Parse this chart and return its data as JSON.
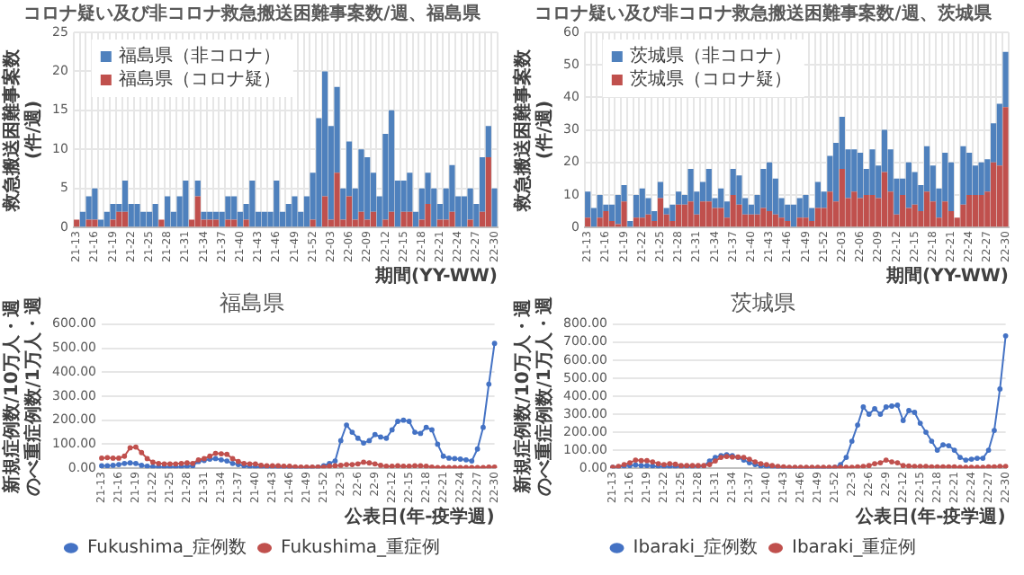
{
  "chart_data": [
    {
      "type": "bar",
      "title": "コロナ疑い及び非コロナ救急搬送困難事案数/週、福島県",
      "xlabel": "期間(YY-WW)",
      "ylabel": "救急搬送困難事案数(件/週)",
      "stacked": true,
      "grid": true,
      "legend": "top left",
      "ylim": [
        0,
        25
      ],
      "yticks": [
        0,
        5,
        10,
        15,
        20,
        25
      ],
      "categories": [
        "21-13",
        null,
        null,
        "21-16",
        null,
        null,
        "21-19",
        null,
        null,
        "21-22",
        null,
        null,
        "21-25",
        null,
        null,
        "21-28",
        null,
        null,
        "21-31",
        null,
        null,
        "21-34",
        null,
        null,
        "21-37",
        null,
        null,
        "21-40",
        null,
        null,
        "21-43",
        null,
        null,
        "21-46",
        null,
        null,
        "21-49",
        null,
        null,
        "21-52",
        null,
        null,
        "22-03",
        null,
        null,
        "22-06",
        null,
        null,
        "22-09",
        null,
        null,
        "22-12",
        null,
        null,
        "22-15",
        null,
        null,
        "22-18",
        null,
        null,
        "22-21",
        null,
        null,
        "22-24",
        null,
        null,
        "22-27",
        null,
        null,
        "22-30"
      ],
      "series": [
        {
          "name": "福島県（コロナ疑）",
          "color": "#c0504d",
          "values": [
            1,
            0,
            1,
            1,
            0,
            0,
            1,
            2,
            2,
            0,
            0,
            0,
            0,
            0,
            1,
            0,
            0,
            0,
            0,
            1,
            4,
            1,
            1,
            1,
            0,
            1,
            1,
            0,
            1,
            0,
            0,
            0,
            0,
            0,
            0,
            0,
            0,
            0,
            0,
            1,
            0,
            4,
            1,
            7,
            1,
            4,
            1,
            2,
            1,
            2,
            0,
            1,
            2,
            0,
            2,
            2,
            0,
            1,
            3,
            0,
            1,
            1,
            2,
            0,
            0,
            1,
            0,
            2,
            9,
            0
          ]
        },
        {
          "name": "福島県（非コロナ）",
          "color": "#4f81bd",
          "values": [
            0,
            2,
            3,
            4,
            1,
            2,
            2,
            1,
            4,
            3,
            3,
            2,
            2,
            3,
            0,
            4,
            2,
            4,
            6,
            0,
            2,
            1,
            1,
            1,
            2,
            3,
            3,
            2,
            2,
            6,
            2,
            2,
            2,
            6,
            2,
            3,
            4,
            2,
            4,
            6,
            14,
            16,
            12,
            11,
            4,
            7,
            4,
            8,
            8,
            5,
            4,
            11,
            13,
            6,
            4,
            5,
            2,
            4,
            4,
            5,
            2,
            4,
            6,
            4,
            4,
            4,
            3,
            7,
            4,
            5
          ]
        }
      ]
    },
    {
      "type": "bar",
      "title": "コロナ疑い及び非コロナ救急搬送困難事案数/週、茨城県",
      "xlabel": "期間(YY-WW)",
      "ylabel": "救急搬送困難事案数(件/週)",
      "stacked": true,
      "grid": true,
      "legend": "top left",
      "ylim": [
        0,
        60
      ],
      "yticks": [
        0,
        10,
        20,
        30,
        40,
        50,
        60
      ],
      "categories": [
        "21-13",
        null,
        null,
        "21-16",
        null,
        null,
        "21-19",
        null,
        null,
        "21-22",
        null,
        null,
        "21-25",
        null,
        null,
        "21-28",
        null,
        null,
        "21-31",
        null,
        null,
        "21-34",
        null,
        null,
        "21-37",
        null,
        null,
        "21-40",
        null,
        null,
        "21-43",
        null,
        null,
        "21-46",
        null,
        null,
        "21-49",
        null,
        null,
        "21-52",
        null,
        null,
        "22-03",
        null,
        null,
        "22-06",
        null,
        null,
        "22-09",
        null,
        null,
        "22-12",
        null,
        null,
        "22-15",
        null,
        null,
        "22-18",
        null,
        null,
        "22-21",
        null,
        null,
        "22-24",
        null,
        null,
        "22-27",
        null,
        null,
        "22-30"
      ],
      "series": [
        {
          "name": "茨城県（コロナ疑）",
          "color": "#c0504d",
          "values": [
            3,
            0,
            3,
            5,
            2,
            1,
            8,
            0,
            3,
            3,
            4,
            2,
            9,
            4,
            2,
            7,
            7,
            8,
            4,
            8,
            8,
            6,
            6,
            3,
            10,
            7,
            4,
            4,
            4,
            6,
            5,
            4,
            3,
            2,
            0,
            3,
            3,
            2,
            6,
            6,
            11,
            8,
            18,
            9,
            11,
            9,
            10,
            10,
            9,
            17,
            11,
            4,
            10,
            6,
            7,
            5,
            11,
            8,
            3,
            8,
            5,
            3,
            7,
            10,
            10,
            10,
            11,
            20,
            19,
            37
          ]
        },
        {
          "name": "茨城県（非コロナ）",
          "color": "#4f81bd",
          "values": [
            8,
            6,
            7,
            2,
            5,
            9,
            5,
            2,
            7,
            9,
            5,
            3,
            5,
            2,
            5,
            4,
            3,
            10,
            7,
            6,
            10,
            3,
            6,
            5,
            8,
            9,
            5,
            3,
            6,
            12,
            15,
            11,
            6,
            5,
            7,
            6,
            7,
            4,
            8,
            5,
            11,
            18,
            16,
            15,
            13,
            14,
            8,
            14,
            10,
            13,
            13,
            11,
            5,
            14,
            10,
            8,
            14,
            11,
            9,
            15,
            15,
            0,
            18,
            13,
            9,
            10,
            10,
            12,
            19,
            17
          ]
        }
      ]
    },
    {
      "type": "line",
      "title": "福島県",
      "xlabel": "公表日(年-疫学週)",
      "ylabel": "新規症例数/10万人・週のべ重症例数/1万人・週",
      "grid": "y",
      "legend": "bottom",
      "marker": "circle",
      "ylim": [
        0,
        600
      ],
      "yticks": [
        {
          "value": 0,
          "label": "0.00"
        },
        {
          "value": 100,
          "label": "100.00"
        },
        {
          "value": 200,
          "label": "200.00"
        },
        {
          "value": 300,
          "label": "300.00"
        },
        {
          "value": 400,
          "label": "400.00"
        },
        {
          "value": 500,
          "label": "500.00"
        },
        {
          "value": 600,
          "label": "600.00"
        }
      ],
      "categories": [
        "21-13",
        null,
        null,
        "21-16",
        null,
        null,
        "21-19",
        null,
        null,
        "21-22",
        null,
        null,
        "21-25",
        null,
        null,
        "21-28",
        null,
        null,
        "21-31",
        null,
        null,
        "21-34",
        null,
        null,
        "21-37",
        null,
        null,
        "21-40",
        null,
        null,
        "21-43",
        null,
        null,
        "21-46",
        null,
        null,
        "21-49",
        null,
        null,
        "21-52",
        null,
        null,
        "22-3",
        null,
        null,
        "22-6",
        null,
        null,
        "22-9",
        null,
        null,
        "22-12",
        null,
        null,
        "22-15",
        null,
        null,
        "22-18",
        null,
        null,
        "22-21",
        null,
        null,
        "22-24",
        null,
        null,
        "22-27",
        null,
        null,
        "22-30"
      ],
      "series": [
        {
          "name": "Fukushima_症例数",
          "color": "#4472c4",
          "values": [
            10,
            10,
            12,
            15,
            20,
            22,
            20,
            12,
            8,
            6,
            5,
            5,
            5,
            5,
            6,
            8,
            10,
            28,
            32,
            38,
            40,
            35,
            30,
            20,
            15,
            10,
            6,
            5,
            4,
            3,
            3,
            2,
            2,
            2,
            2,
            2,
            2,
            3,
            5,
            10,
            20,
            30,
            115,
            180,
            150,
            125,
            105,
            115,
            140,
            130,
            125,
            160,
            195,
            200,
            195,
            150,
            145,
            170,
            160,
            100,
            50,
            42,
            40,
            38,
            35,
            30,
            80,
            170,
            350,
            520
          ]
        },
        {
          "name": "Fukushima_重症例",
          "color": "#c0504d",
          "values": [
            42,
            44,
            42,
            42,
            50,
            85,
            88,
            65,
            40,
            25,
            20,
            18,
            18,
            18,
            20,
            22,
            20,
            35,
            40,
            50,
            62,
            60,
            58,
            40,
            28,
            20,
            18,
            18,
            12,
            10,
            10,
            10,
            8,
            8,
            6,
            5,
            5,
            5,
            5,
            5,
            8,
            10,
            12,
            15,
            15,
            18,
            25,
            22,
            18,
            12,
            8,
            8,
            10,
            8,
            8,
            10,
            10,
            8,
            5,
            3,
            3,
            3,
            3,
            3,
            3,
            3,
            3,
            3,
            5,
            5
          ]
        }
      ]
    },
    {
      "type": "line",
      "title": "茨城県",
      "xlabel": "公表日(年-疫学週)",
      "ylabel": "新規症例数/10万人・週のべ重症例数/1万人・週",
      "grid": "y",
      "legend": "bottom",
      "marker": "circle",
      "ylim": [
        0,
        800
      ],
      "yticks": [
        {
          "value": 0,
          "label": "0.00"
        },
        {
          "value": 100,
          "label": "100.00"
        },
        {
          "value": 200,
          "label": "200.00"
        },
        {
          "value": 300,
          "label": "300.00"
        },
        {
          "value": 400,
          "label": "400.00"
        },
        {
          "value": 500,
          "label": "500.00"
        },
        {
          "value": 600,
          "label": "600.00"
        },
        {
          "value": 700,
          "label": "700.00"
        },
        {
          "value": 800,
          "label": "800.00"
        }
      ],
      "categories": [
        "21-13",
        null,
        null,
        "21-16",
        null,
        null,
        "21-19",
        null,
        null,
        "21-22",
        null,
        null,
        "21-25",
        null,
        null,
        "21-28",
        null,
        null,
        "21-31",
        null,
        null,
        "21-34",
        null,
        null,
        "21-37",
        null,
        null,
        "21-40",
        null,
        null,
        "21-43",
        null,
        null,
        "21-46",
        null,
        null,
        "21-49",
        null,
        null,
        "21-52",
        null,
        null,
        "22-3",
        null,
        null,
        "22-6",
        null,
        null,
        "22-9",
        null,
        null,
        "22-12",
        null,
        null,
        "22-15",
        null,
        null,
        "22-18",
        null,
        null,
        "22-21",
        null,
        null,
        "22-24",
        null,
        null,
        "22-27",
        null,
        null,
        "22-30"
      ],
      "series": [
        {
          "name": "Ibaraki_症例数",
          "color": "#4472c4",
          "values": [
            5,
            8,
            12,
            15,
            18,
            15,
            15,
            12,
            10,
            8,
            8,
            8,
            8,
            8,
            8,
            10,
            12,
            40,
            60,
            70,
            75,
            70,
            60,
            45,
            30,
            20,
            12,
            8,
            5,
            3,
            3,
            2,
            2,
            2,
            2,
            2,
            2,
            2,
            3,
            5,
            20,
            60,
            150,
            240,
            340,
            300,
            330,
            300,
            340,
            345,
            350,
            265,
            320,
            310,
            250,
            200,
            150,
            100,
            130,
            125,
            100,
            60,
            45,
            50,
            55,
            55,
            100,
            210,
            440,
            735
          ]
        },
        {
          "name": "Ibaraki_重症例",
          "color": "#c0504d",
          "values": [
            5,
            10,
            20,
            30,
            45,
            42,
            42,
            35,
            25,
            20,
            25,
            22,
            15,
            15,
            15,
            15,
            15,
            20,
            40,
            60,
            65,
            62,
            62,
            60,
            50,
            35,
            25,
            20,
            15,
            10,
            8,
            5,
            5,
            5,
            5,
            5,
            5,
            5,
            5,
            5,
            5,
            5,
            5,
            8,
            10,
            15,
            25,
            30,
            45,
            35,
            30,
            15,
            12,
            10,
            10,
            10,
            8,
            8,
            8,
            8,
            8,
            5,
            5,
            5,
            5,
            5,
            8,
            8,
            10,
            10
          ]
        }
      ]
    }
  ]
}
